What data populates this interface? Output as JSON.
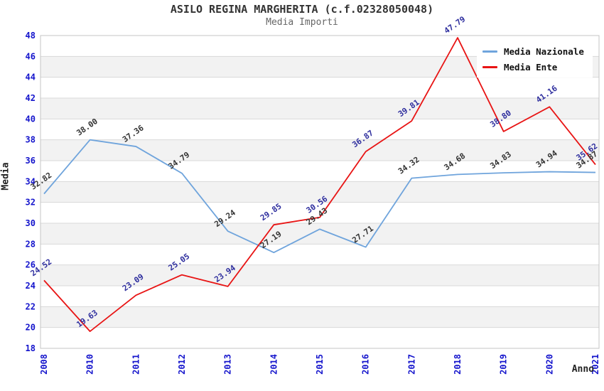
{
  "chart_data": {
    "type": "line",
    "title": "ASILO REGINA MARGHERITA (c.f.02328050048)",
    "subtitle": "Media Importi",
    "xlabel": "Anno",
    "ylabel": "Media",
    "ylim": [
      18,
      48
    ],
    "ytick_step": 2,
    "grid": "horizontal-bands",
    "legend_position": "top-right",
    "categories": [
      "2008",
      "2010",
      "2011",
      "2012",
      "2013",
      "2014",
      "2015",
      "2016",
      "2017",
      "2018",
      "2019",
      "2020",
      "2021"
    ],
    "series": [
      {
        "name": "Media Nazionale",
        "color": "#6FA4DC",
        "label_color": "#333333",
        "values": [
          32.82,
          38.0,
          37.36,
          34.79,
          29.24,
          27.19,
          29.43,
          27.71,
          34.32,
          34.68,
          34.83,
          34.94,
          34.87
        ]
      },
      {
        "name": "Media Ente",
        "color": "#E81414",
        "label_color": "#2E2E9E",
        "values": [
          24.52,
          19.63,
          23.09,
          25.05,
          23.94,
          29.85,
          30.56,
          36.87,
          39.81,
          47.79,
          38.8,
          41.16,
          35.62
        ]
      }
    ],
    "axis_tick_color": "#1414CC",
    "band_color": "#F2F2F2",
    "grid_color": "#D9D9D9",
    "frame_color": "#C4C4C4",
    "value_label_decimals": 2
  }
}
